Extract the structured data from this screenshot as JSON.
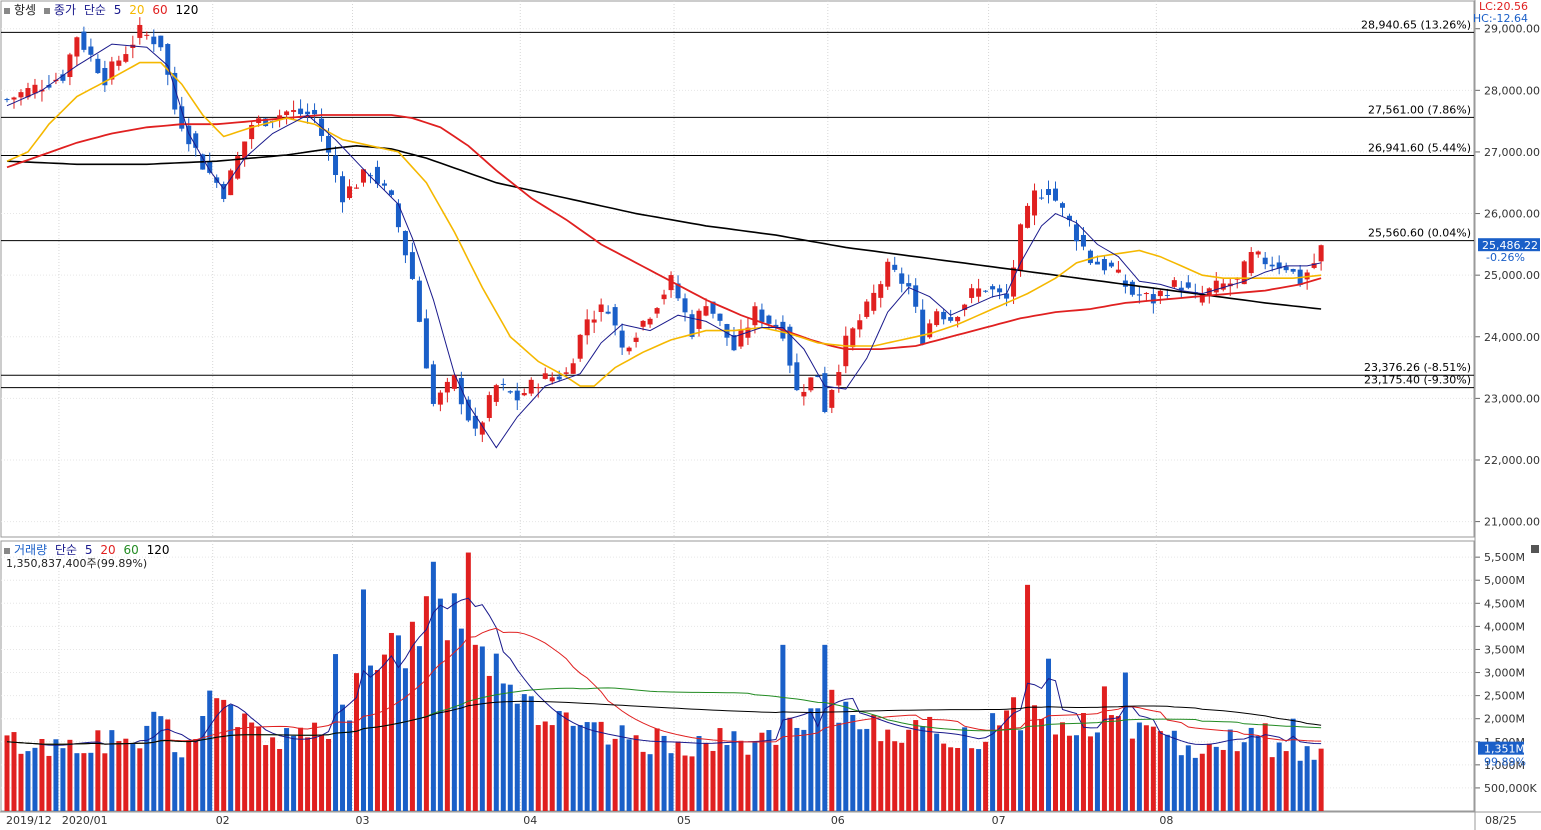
{
  "top": {
    "indicator": "항셍",
    "close_label": "종가",
    "ma_type": "단순",
    "ma_periods": [
      "5",
      "20",
      "60",
      "120"
    ],
    "ma_colors": [
      "#1a1a8c",
      "#f5b800",
      "#e02020",
      "#000000"
    ],
    "lc": "LC:20.56",
    "hc": "HC:-12.64"
  },
  "bottom": {
    "indicator": "거래량",
    "ma_type": "단순",
    "ma_periods": [
      "5",
      "20",
      "60",
      "120"
    ],
    "ma_colors": [
      "#1a1a8c",
      "#e02020",
      "#228b22",
      "#000000"
    ],
    "total": "1,350,837,400주(99.89%)"
  },
  "colors": {
    "up": "#e02020",
    "down": "#1a5fc8",
    "price_badge": "#1a5fc8"
  },
  "chart_data": [
    {
      "type": "candlestick",
      "title": "항셍",
      "ylim": [
        20750,
        29450
      ],
      "y_ticks": [
        "21,000.00",
        "22,000.00",
        "23,000.00",
        "24,000.00",
        "25,000.00",
        "26,000.00",
        "27,000.00",
        "28,000.00",
        "29,000.00"
      ],
      "y_tick_values": [
        21000,
        22000,
        23000,
        24000,
        25000,
        26000,
        27000,
        28000,
        29000
      ],
      "current_price": "25,486.22",
      "current_change": "-0.26%",
      "current_value": 25486.22,
      "grid": true,
      "months": [
        "2019/12",
        "2020/01",
        "02",
        "03",
        "04",
        "05",
        "06",
        "07",
        "08",
        "08/25"
      ],
      "month_start_index": [
        0,
        8,
        30,
        50,
        74,
        96,
        118,
        141,
        165,
        210
      ],
      "hlines": [
        {
          "value": 28940.65,
          "label": "28,940.65 (13.26%)"
        },
        {
          "value": 27561.0,
          "label": "27,561.00 (7.86%)"
        },
        {
          "value": 26941.6,
          "label": "26,941.60 (5.44%)"
        },
        {
          "value": 25560.6,
          "label": "25,560.60 (0.04%)"
        },
        {
          "value": 23376.26,
          "label": "23,376.26 (-8.51%)"
        },
        {
          "value": 23175.4,
          "label": "23,175.40 (-9.30%)"
        }
      ],
      "anchors_close": [
        [
          0,
          27850
        ],
        [
          8,
          28240
        ],
        [
          10,
          28900
        ],
        [
          14,
          28200
        ],
        [
          19,
          28950
        ],
        [
          22,
          28760
        ],
        [
          24,
          27700
        ],
        [
          28,
          26800
        ],
        [
          31,
          26350
        ],
        [
          35,
          27450
        ],
        [
          40,
          27650
        ],
        [
          44,
          27600
        ],
        [
          48,
          26300
        ],
        [
          52,
          26700
        ],
        [
          55,
          26200
        ],
        [
          58,
          24950
        ],
        [
          61,
          22900
        ],
        [
          64,
          23300
        ],
        [
          67,
          22400
        ],
        [
          70,
          23200
        ],
        [
          73,
          23000
        ],
        [
          76,
          23300
        ],
        [
          80,
          23400
        ],
        [
          83,
          24300
        ],
        [
          86,
          24500
        ],
        [
          88,
          23800
        ],
        [
          92,
          24400
        ],
        [
          95,
          24900
        ],
        [
          98,
          24100
        ],
        [
          100,
          24600
        ],
        [
          104,
          23800
        ],
        [
          107,
          24400
        ],
        [
          111,
          24100
        ],
        [
          113,
          23100
        ],
        [
          116,
          23400
        ],
        [
          117,
          22850
        ],
        [
          120,
          23900
        ],
        [
          123,
          24450
        ],
        [
          126,
          25100
        ],
        [
          129,
          24800
        ],
        [
          131,
          24000
        ],
        [
          133,
          24450
        ],
        [
          135,
          24300
        ],
        [
          138,
          24700
        ],
        [
          140,
          24800
        ],
        [
          143,
          24600
        ],
        [
          145,
          25700
        ],
        [
          147,
          26300
        ],
        [
          149,
          26400
        ],
        [
          152,
          25850
        ],
        [
          155,
          25250
        ],
        [
          158,
          25100
        ],
        [
          161,
          24700
        ],
        [
          164,
          24600
        ],
        [
          166,
          24800
        ],
        [
          168,
          24850
        ],
        [
          170,
          24600
        ],
        [
          173,
          24800
        ],
        [
          176,
          24900
        ],
        [
          178,
          25300
        ],
        [
          181,
          25200
        ],
        [
          183,
          25150
        ],
        [
          185,
          24900
        ],
        [
          187,
          25200
        ],
        [
          188,
          25486
        ]
      ],
      "anchors_ma5": [
        [
          0,
          27750
        ],
        [
          5,
          28000
        ],
        [
          10,
          28400
        ],
        [
          15,
          28750
        ],
        [
          20,
          28700
        ],
        [
          23,
          28400
        ],
        [
          26,
          27300
        ],
        [
          29,
          26700
        ],
        [
          31,
          26400
        ],
        [
          34,
          26900
        ],
        [
          38,
          27300
        ],
        [
          43,
          27600
        ],
        [
          47,
          27200
        ],
        [
          52,
          26600
        ],
        [
          56,
          26150
        ],
        [
          58,
          25600
        ],
        [
          61,
          24600
        ],
        [
          64,
          23400
        ],
        [
          66,
          22900
        ],
        [
          70,
          22200
        ],
        [
          73,
          22700
        ],
        [
          77,
          23200
        ],
        [
          82,
          23400
        ],
        [
          85,
          23900
        ],
        [
          88,
          24200
        ],
        [
          92,
          24100
        ],
        [
          96,
          24350
        ],
        [
          100,
          24250
        ],
        [
          104,
          24000
        ],
        [
          108,
          24150
        ],
        [
          111,
          24150
        ],
        [
          114,
          23800
        ],
        [
          117,
          23200
        ],
        [
          120,
          23150
        ],
        [
          123,
          23650
        ],
        [
          126,
          24400
        ],
        [
          129,
          24800
        ],
        [
          132,
          24650
        ],
        [
          135,
          24350
        ],
        [
          138,
          24500
        ],
        [
          141,
          24650
        ],
        [
          143,
          24700
        ],
        [
          145,
          25200
        ],
        [
          148,
          25800
        ],
        [
          150,
          26000
        ],
        [
          153,
          25850
        ],
        [
          156,
          25500
        ],
        [
          159,
          25300
        ],
        [
          162,
          24900
        ],
        [
          165,
          24850
        ],
        [
          168,
          24750
        ],
        [
          171,
          24700
        ],
        [
          174,
          24800
        ],
        [
          177,
          24900
        ],
        [
          180,
          25050
        ],
        [
          183,
          25150
        ],
        [
          186,
          25150
        ],
        [
          188,
          25200
        ]
      ],
      "anchors_ma20": [
        [
          0,
          26850
        ],
        [
          3,
          27000
        ],
        [
          6,
          27450
        ],
        [
          10,
          27900
        ],
        [
          15,
          28200
        ],
        [
          19,
          28450
        ],
        [
          22,
          28450
        ],
        [
          25,
          28100
        ],
        [
          28,
          27600
        ],
        [
          31,
          27250
        ],
        [
          35,
          27400
        ],
        [
          40,
          27550
        ],
        [
          44,
          27450
        ],
        [
          48,
          27200
        ],
        [
          52,
          27100
        ],
        [
          56,
          27000
        ],
        [
          60,
          26500
        ],
        [
          64,
          25700
        ],
        [
          68,
          24800
        ],
        [
          72,
          24000
        ],
        [
          76,
          23600
        ],
        [
          80,
          23350
        ],
        [
          82,
          23200
        ],
        [
          84,
          23200
        ],
        [
          87,
          23500
        ],
        [
          91,
          23750
        ],
        [
          95,
          23950
        ],
        [
          100,
          24100
        ],
        [
          104,
          24100
        ],
        [
          108,
          24150
        ],
        [
          112,
          24050
        ],
        [
          116,
          23900
        ],
        [
          120,
          23850
        ],
        [
          124,
          23850
        ],
        [
          128,
          23950
        ],
        [
          132,
          24050
        ],
        [
          136,
          24200
        ],
        [
          140,
          24400
        ],
        [
          143,
          24550
        ],
        [
          146,
          24700
        ],
        [
          150,
          24950
        ],
        [
          153,
          25200
        ],
        [
          156,
          25300
        ],
        [
          159,
          25350
        ],
        [
          162,
          25400
        ],
        [
          165,
          25300
        ],
        [
          168,
          25150
        ],
        [
          171,
          25000
        ],
        [
          174,
          24950
        ],
        [
          177,
          24950
        ],
        [
          180,
          24950
        ],
        [
          184,
          24950
        ],
        [
          188,
          25000
        ]
      ],
      "anchors_ma60": [
        [
          0,
          26750
        ],
        [
          5,
          26950
        ],
        [
          10,
          27150
        ],
        [
          15,
          27300
        ],
        [
          20,
          27400
        ],
        [
          25,
          27450
        ],
        [
          30,
          27450
        ],
        [
          35,
          27500
        ],
        [
          40,
          27550
        ],
        [
          45,
          27600
        ],
        [
          50,
          27600
        ],
        [
          55,
          27600
        ],
        [
          58,
          27550
        ],
        [
          62,
          27400
        ],
        [
          66,
          27100
        ],
        [
          70,
          26700
        ],
        [
          75,
          26250
        ],
        [
          80,
          25900
        ],
        [
          85,
          25500
        ],
        [
          90,
          25200
        ],
        [
          95,
          24900
        ],
        [
          100,
          24600
        ],
        [
          105,
          24350
        ],
        [
          110,
          24150
        ],
        [
          115,
          23950
        ],
        [
          118,
          23850
        ],
        [
          120,
          23800
        ],
        [
          125,
          23800
        ],
        [
          130,
          23850
        ],
        [
          135,
          24000
        ],
        [
          140,
          24150
        ],
        [
          145,
          24300
        ],
        [
          150,
          24400
        ],
        [
          155,
          24450
        ],
        [
          160,
          24550
        ],
        [
          165,
          24600
        ],
        [
          170,
          24650
        ],
        [
          175,
          24700
        ],
        [
          180,
          24750
        ],
        [
          185,
          24850
        ],
        [
          188,
          24950
        ]
      ],
      "anchors_ma120": [
        [
          0,
          26850
        ],
        [
          10,
          26800
        ],
        [
          20,
          26800
        ],
        [
          30,
          26850
        ],
        [
          40,
          26950
        ],
        [
          46,
          27050
        ],
        [
          50,
          27100
        ],
        [
          55,
          27050
        ],
        [
          60,
          26900
        ],
        [
          65,
          26700
        ],
        [
          70,
          26500
        ],
        [
          80,
          26250
        ],
        [
          90,
          26000
        ],
        [
          100,
          25800
        ],
        [
          110,
          25650
        ],
        [
          115,
          25550
        ],
        [
          120,
          25450
        ],
        [
          130,
          25300
        ],
        [
          140,
          25150
        ],
        [
          150,
          25000
        ],
        [
          160,
          24850
        ],
        [
          170,
          24700
        ],
        [
          180,
          24550
        ],
        [
          188,
          24450
        ]
      ]
    },
    {
      "type": "bar",
      "title": "거래량",
      "ylim": [
        0,
        5850
      ],
      "y_ticks": [
        "500,000K",
        "1,000M",
        "1,500M",
        "2,000M",
        "2,500M",
        "3,000M",
        "3,500M",
        "4,000M",
        "4,500M",
        "5,000M",
        "5,500M"
      ],
      "y_tick_values": [
        500,
        1000,
        1500,
        2000,
        2500,
        3000,
        3500,
        4000,
        4500,
        5000,
        5500
      ],
      "current_volume": "1,351M",
      "current_pct": "99.89%",
      "value_unit": "M shares",
      "anchors_volume": [
        [
          0,
          1500
        ],
        [
          5,
          1400
        ],
        [
          10,
          1500
        ],
        [
          15,
          1500
        ],
        [
          20,
          1550
        ],
        [
          22,
          2200
        ],
        [
          24,
          1200
        ],
        [
          26,
          1400
        ],
        [
          28,
          2300
        ],
        [
          30,
          2400
        ],
        [
          32,
          2100
        ],
        [
          35,
          1700
        ],
        [
          38,
          1600
        ],
        [
          41,
          1500
        ],
        [
          44,
          1700
        ],
        [
          47,
          2000
        ],
        [
          50,
          2500
        ],
        [
          53,
          2800
        ],
        [
          55,
          3400
        ],
        [
          57,
          3700
        ],
        [
          59,
          4100
        ],
        [
          61,
          4300
        ],
        [
          63,
          4700
        ],
        [
          65,
          4600
        ],
        [
          67,
          4300
        ],
        [
          69,
          3500
        ],
        [
          71,
          3000
        ],
        [
          73,
          2700
        ],
        [
          75,
          2300
        ],
        [
          77,
          2100
        ],
        [
          80,
          1800
        ],
        [
          83,
          1700
        ],
        [
          86,
          1600
        ],
        [
          90,
          1500
        ],
        [
          94,
          1500
        ],
        [
          98,
          1450
        ],
        [
          102,
          1500
        ],
        [
          106,
          1500
        ],
        [
          110,
          1600
        ],
        [
          114,
          1800
        ],
        [
          116,
          2000
        ],
        [
          118,
          2200
        ],
        [
          121,
          2100
        ],
        [
          124,
          1900
        ],
        [
          127,
          1800
        ],
        [
          130,
          1700
        ],
        [
          133,
          1700
        ],
        [
          136,
          1600
        ],
        [
          139,
          1500
        ],
        [
          141,
          2000
        ],
        [
          143,
          2400
        ],
        [
          145,
          2100
        ],
        [
          148,
          2000
        ],
        [
          151,
          1800
        ],
        [
          155,
          1800
        ],
        [
          159,
          1900
        ],
        [
          163,
          1700
        ],
        [
          166,
          1500
        ],
        [
          169,
          1400
        ],
        [
          172,
          1500
        ],
        [
          175,
          1600
        ],
        [
          178,
          1500
        ],
        [
          182,
          1400
        ],
        [
          185,
          1300
        ],
        [
          188,
          1351
        ]
      ],
      "spikes": [
        [
          14,
          1250
        ],
        [
          32,
          2300
        ],
        [
          47,
          3400
        ],
        [
          51,
          4800
        ],
        [
          58,
          4100
        ],
        [
          61,
          5400
        ],
        [
          63,
          3700
        ],
        [
          66,
          5600
        ],
        [
          67,
          3600
        ],
        [
          111,
          3600
        ],
        [
          117,
          3600
        ],
        [
          146,
          4900
        ],
        [
          149,
          3300
        ],
        [
          157,
          2700
        ],
        [
          160,
          3000
        ],
        [
          178,
          1800
        ],
        [
          180,
          1900
        ],
        [
          184,
          2000
        ]
      ]
    }
  ]
}
